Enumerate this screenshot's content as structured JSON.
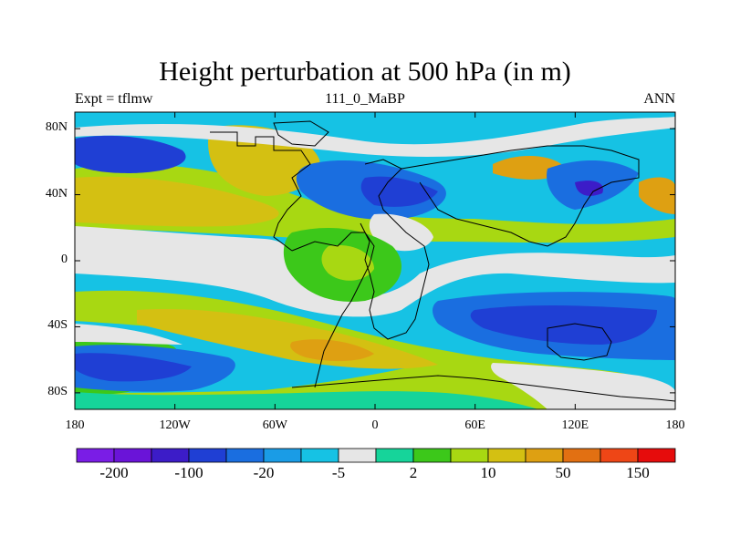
{
  "title": "Height perturbation at 500 hPa (in m)",
  "subtitle_left": "Expt = tflmw",
  "subtitle_center": "111_0_MaBP",
  "subtitle_right": "ANN",
  "axes": {
    "lat_ticks": [
      {
        "value": 80,
        "label": "80N"
      },
      {
        "value": 40,
        "label": "40N"
      },
      {
        "value": 0,
        "label": "0"
      },
      {
        "value": -40,
        "label": "40S"
      },
      {
        "value": -80,
        "label": "80S"
      }
    ],
    "lon_ticks": [
      {
        "value": -180,
        "label": "180"
      },
      {
        "value": -120,
        "label": "120W"
      },
      {
        "value": -60,
        "label": "60W"
      },
      {
        "value": 0,
        "label": "0"
      },
      {
        "value": 60,
        "label": "60E"
      },
      {
        "value": 120,
        "label": "120E"
      },
      {
        "value": 180,
        "label": "180"
      }
    ],
    "lon_range": [
      -180,
      180
    ],
    "lat_range": [
      -90,
      90
    ]
  },
  "colorbar": {
    "colors": [
      "#7a1de6",
      "#6a14d8",
      "#3c1cc8",
      "#1f3fd4",
      "#1a6ee0",
      "#1a9ce6",
      "#16c2e4",
      "#e6e6e6",
      "#16d49a",
      "#3cc81a",
      "#a8d812",
      "#d4c012",
      "#dea012",
      "#e27012",
      "#ee4616",
      "#e60c0c"
    ],
    "labels": [
      {
        "boundary": 1,
        "text": "-200"
      },
      {
        "boundary": 3,
        "text": "-100"
      },
      {
        "boundary": 5,
        "text": "-20"
      },
      {
        "boundary": 7,
        "text": "-5"
      },
      {
        "boundary": 9,
        "text": "2"
      },
      {
        "boundary": 11,
        "text": "10"
      },
      {
        "boundary": 13,
        "text": "50"
      },
      {
        "boundary": 15,
        "text": "150"
      }
    ]
  },
  "field_colors": {
    "neg_strong": "#1f3fd4",
    "neg_mid": "#1a6ee0",
    "neg_weak": "#1a9ce6",
    "neg_faint": "#16c2e4",
    "neutral": "#e6e6e6",
    "pos_faint": "#16d49a",
    "pos_weak": "#3cc81a",
    "pos_mid": "#a8d812",
    "pos_strong": "#d4c012",
    "pos_stronger": "#dea012",
    "pos_max": "#e27012"
  }
}
